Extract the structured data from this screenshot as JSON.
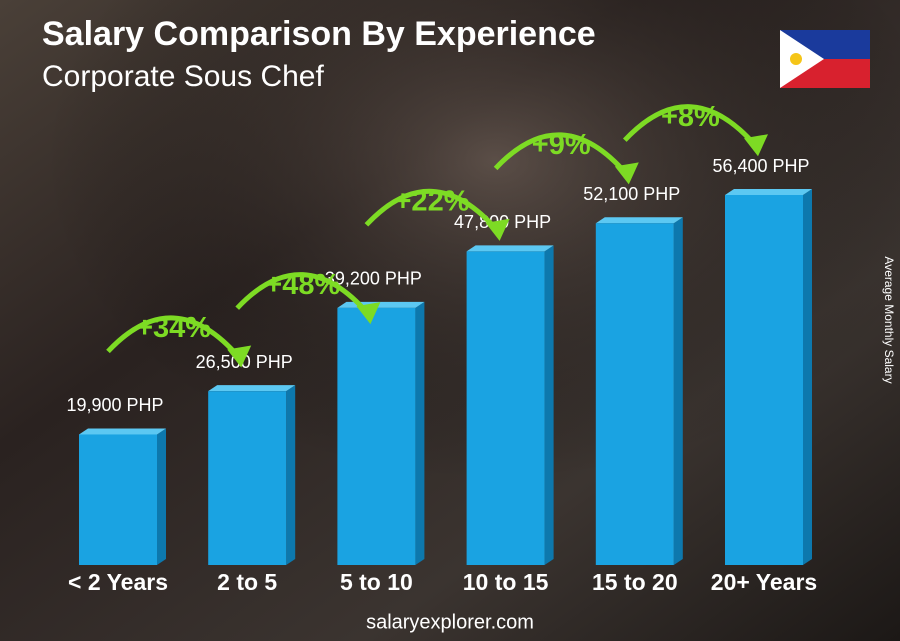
{
  "chart_data": {
    "type": "bar",
    "title": "Salary Comparison By Experience",
    "subtitle": "Corporate Sous Chef",
    "y_label": "Average Monthly Salary",
    "categories": [
      "< 2 Years",
      "2 to 5",
      "5 to 10",
      "10 to 15",
      "15 to 20",
      "20+ Years"
    ],
    "values": [
      19900,
      26500,
      39200,
      47800,
      52100,
      56400
    ],
    "value_labels": [
      "19,900 PHP",
      "26,500 PHP",
      "39,200 PHP",
      "47,800 PHP",
      "52,100 PHP",
      "56,400 PHP"
    ],
    "changes": [
      "+34%",
      "+48%",
      "+22%",
      "+9%",
      "+8%"
    ],
    "color": "#1aa3e2",
    "change_color": "#7ddb24",
    "footer": "salaryexplorer.com"
  }
}
